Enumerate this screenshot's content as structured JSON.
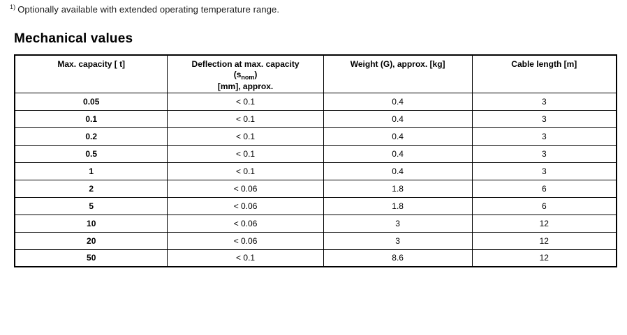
{
  "footnote": {
    "marker": "1)",
    "text": "Optionally available with extended operating temperature range."
  },
  "section": {
    "title": "Mechanical values"
  },
  "table": {
    "headers": {
      "capacity": "Max. capacity [ t]",
      "deflection_line1": "Deflection at max. capacity",
      "deflection_line2_prefix": "(s",
      "deflection_line2_sub": "nom",
      "deflection_line2_suffix": ")",
      "deflection_line3": "[mm], approx.",
      "weight": "Weight (G), approx. [kg]",
      "cable": "Cable length [m]"
    },
    "rows": [
      {
        "capacity": "0.05",
        "deflection": "< 0.1",
        "weight": "0.4",
        "cable": "3"
      },
      {
        "capacity": "0.1",
        "deflection": "< 0.1",
        "weight": "0.4",
        "cable": "3"
      },
      {
        "capacity": "0.2",
        "deflection": "< 0.1",
        "weight": "0.4",
        "cable": "3"
      },
      {
        "capacity": "0.5",
        "deflection": "< 0.1",
        "weight": "0.4",
        "cable": "3"
      },
      {
        "capacity": "1",
        "deflection": "< 0.1",
        "weight": "0.4",
        "cable": "3"
      },
      {
        "capacity": "2",
        "deflection": "< 0.06",
        "weight": "1.8",
        "cable": "6"
      },
      {
        "capacity": "5",
        "deflection": "< 0.06",
        "weight": "1.8",
        "cable": "6"
      },
      {
        "capacity": "10",
        "deflection": "< 0.06",
        "weight": "3",
        "cable": "12"
      },
      {
        "capacity": "20",
        "deflection": "< 0.06",
        "weight": "3",
        "cable": "12"
      },
      {
        "capacity": "50",
        "deflection": "< 0.1",
        "weight": "8.6",
        "cable": "12"
      }
    ]
  },
  "colors": {
    "text": "#000000",
    "border": "#000000",
    "background": "#ffffff"
  }
}
